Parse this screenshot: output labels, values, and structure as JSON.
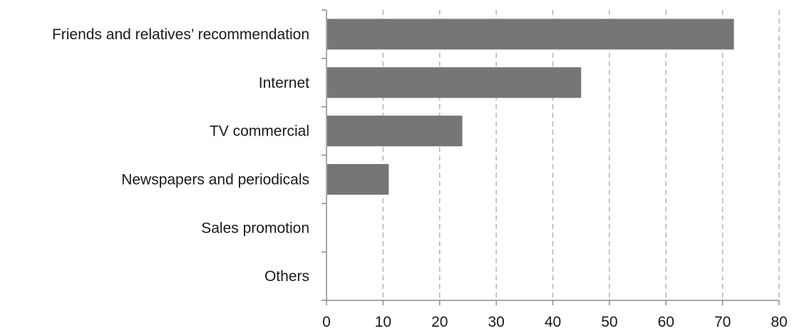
{
  "chart_data": {
    "type": "bar",
    "orientation": "horizontal",
    "categories": [
      "Friends and relatives’ recommendation",
      "Internet",
      "TV commercial",
      "Newspapers and periodicals",
      "Sales promotion",
      "Others"
    ],
    "values": [
      72,
      45,
      24,
      11,
      0,
      0
    ],
    "xlim": [
      0,
      80
    ],
    "xticks": [
      "0",
      "10",
      "20",
      "30",
      "40",
      "50",
      "60",
      "70",
      "80"
    ],
    "grid": "vertical-dashed",
    "bar_color": "#767676",
    "gridline_color": "#b3b3b3",
    "axis_color": "#8c8c8c"
  }
}
